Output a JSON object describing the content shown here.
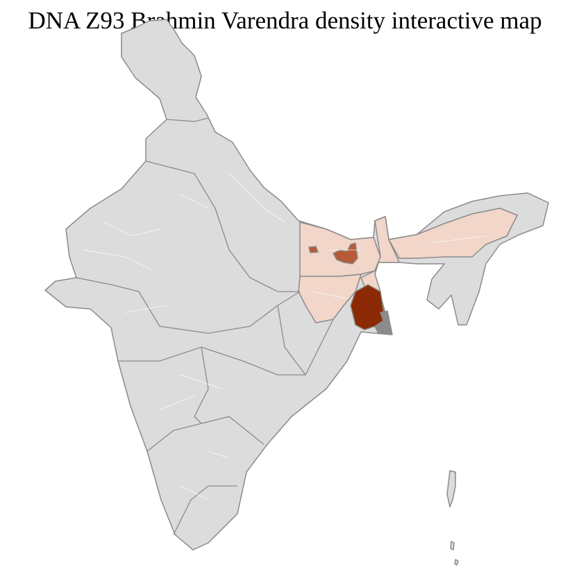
{
  "title": "DNA Z93 Brahmin Varendra density interactive map",
  "colors": {
    "no_data": "#dcdcdc",
    "low": "#f1d6c9",
    "medium": "#b65a37",
    "high": "#8b2a04",
    "unassigned": "#8c8c8c",
    "state_border": "#8a8a8a",
    "district_border": "#ffffff"
  },
  "regions": [
    {
      "name": "Bihar",
      "level": "low"
    },
    {
      "name": "Jharkhand (part)",
      "level": "low"
    },
    {
      "name": "Assam",
      "level": "low"
    },
    {
      "name": "West Bengal (north)",
      "level": "low"
    },
    {
      "name": "West Bengal (south)",
      "level": "high"
    },
    {
      "name": "Bihar (selected districts)",
      "level": "medium"
    }
  ]
}
